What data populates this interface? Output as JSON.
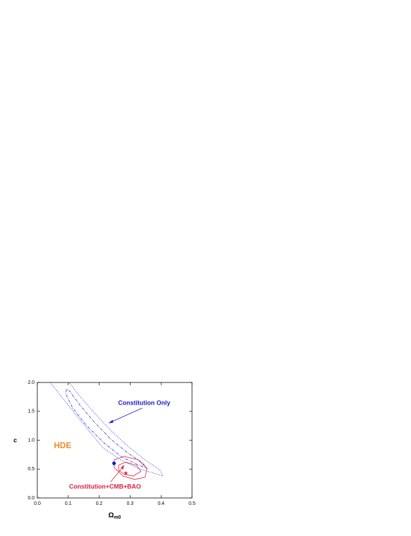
{
  "chart_data": {
    "type": "contour",
    "xlim": [
      0,
      0.5
    ],
    "ylim": [
      0,
      2
    ],
    "xticks": [
      {
        "value": 0,
        "label": "0.0"
      },
      {
        "value": 0.1,
        "label": "0.1"
      },
      {
        "value": 0.2,
        "label": "0.2"
      },
      {
        "value": 0.3,
        "label": "0.3"
      },
      {
        "value": 0.4,
        "label": "0.4"
      },
      {
        "value": 0.5,
        "label": "0.5"
      }
    ],
    "yticks": [
      {
        "value": 0,
        "label": "0.0"
      },
      {
        "value": 0.5,
        "label": "0.5"
      },
      {
        "value": 1,
        "label": "1.0"
      },
      {
        "value": 1.5,
        "label": "1.5"
      },
      {
        "value": 2,
        "label": "2.0"
      }
    ],
    "x_label": {
      "symbol": "Ω",
      "subscript": "m0"
    },
    "y_label": "c",
    "series": [
      {
        "color": "#2a2ad8",
        "style": "dotted",
        "x": [
          0.042,
          0.08,
          0.125,
          0.17,
          0.214,
          0.27,
          0.326,
          0.382,
          0.406,
          0.397,
          0.348,
          0.292,
          0.237,
          0.18,
          0.136,
          0.103
        ],
        "y": [
          2.0,
          1.74,
          1.44,
          1.14,
          0.86,
          0.66,
          0.51,
          0.42,
          0.38,
          0.48,
          0.66,
          0.9,
          1.17,
          1.5,
          1.77,
          2.0
        ]
      },
      {
        "color": "#2a2ad8",
        "style": "dashdot",
        "x": [
          0.094,
          0.092,
          0.114,
          0.158,
          0.214,
          0.27,
          0.326,
          0.355,
          0.337,
          0.292,
          0.237,
          0.18,
          0.136,
          0.103,
          0.094
        ],
        "y": [
          1.88,
          1.8,
          1.56,
          1.26,
          0.96,
          0.72,
          0.57,
          0.51,
          0.62,
          0.78,
          1.02,
          1.34,
          1.62,
          1.86,
          1.88
        ]
      },
      {
        "color": "#e0203a",
        "style": "solid",
        "x": [
          0.248,
          0.281,
          0.326,
          0.355,
          0.348,
          0.315,
          0.277,
          0.248,
          0.248
        ],
        "y": [
          0.66,
          0.72,
          0.66,
          0.51,
          0.36,
          0.32,
          0.38,
          0.53,
          0.66
        ]
      },
      {
        "color": "#e0203a",
        "style": "solid",
        "x": [
          0.263,
          0.286,
          0.321,
          0.335,
          0.31,
          0.281,
          0.263,
          0.263
        ],
        "y": [
          0.57,
          0.62,
          0.56,
          0.46,
          0.38,
          0.41,
          0.48,
          0.57
        ]
      }
    ],
    "points": [
      {
        "x": 0.248,
        "y": 0.6,
        "color": "#1a1ac8",
        "marker": "circle"
      },
      {
        "x": 0.286,
        "y": 0.43,
        "color": "#e0203a",
        "marker": "star"
      }
    ],
    "annotations": [
      {
        "text": "Constitution Only",
        "color": "#1a1ac8"
      },
      {
        "text": "HDE",
        "color": "#f08a24"
      },
      {
        "text": "Constitution+CMB+BAO",
        "color": "#e0203a"
      }
    ]
  }
}
